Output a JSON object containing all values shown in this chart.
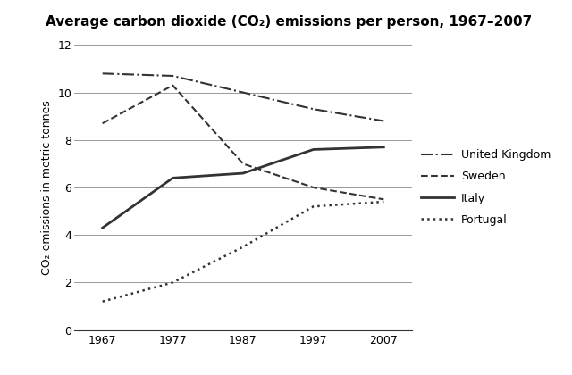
{
  "title": "Average carbon dioxide (CO₂) emissions per person, 1967–2007",
  "ylabel": "CO₂ emissions in metric tonnes",
  "years": [
    1967,
    1977,
    1987,
    1997,
    2007
  ],
  "series": [
    {
      "label": "United Kingdom",
      "values": [
        10.8,
        10.7,
        10.0,
        9.3,
        8.8
      ],
      "linestyle": "dashdot",
      "color": "#333333",
      "linewidth": 1.5
    },
    {
      "label": "Sweden",
      "values": [
        8.7,
        10.3,
        7.0,
        6.0,
        5.5
      ],
      "linestyle": "dashed",
      "color": "#333333",
      "linewidth": 1.5
    },
    {
      "label": "Italy",
      "values": [
        4.3,
        6.4,
        6.6,
        7.6,
        7.7
      ],
      "linestyle": "solid",
      "color": "#333333",
      "linewidth": 2.0
    },
    {
      "label": "Portugal",
      "values": [
        1.2,
        2.0,
        3.5,
        5.2,
        5.4
      ],
      "linestyle": "dotted",
      "color": "#333333",
      "linewidth": 1.8
    }
  ],
  "ylim": [
    0,
    12
  ],
  "yticks": [
    0,
    2,
    4,
    6,
    8,
    10,
    12
  ],
  "xticks": [
    1967,
    1977,
    1987,
    1997,
    2007
  ],
  "background_color": "#ffffff",
  "grid_color": "#999999",
  "title_fontsize": 11,
  "label_fontsize": 9,
  "tick_fontsize": 9,
  "legend_fontsize": 9
}
